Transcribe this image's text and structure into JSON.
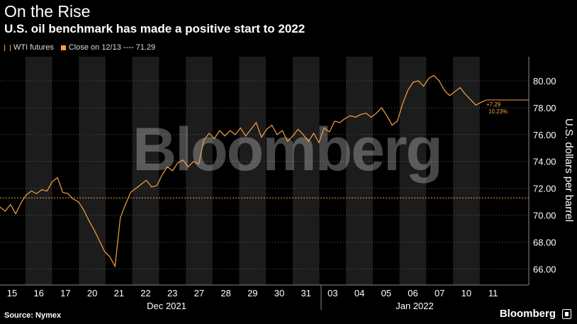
{
  "title": "On the Rise",
  "subtitle": "U.S. oil benchmark has made a positive start to 2022",
  "legend": {
    "series_label": "WTI futures",
    "close_label": "Close on 12/13 ---- 71.29"
  },
  "source": "Source: Nymex",
  "brand": "Bloomberg",
  "watermark": "Bloomberg",
  "annotation": {
    "change": "+7.29",
    "pct": "10.23%"
  },
  "colors": {
    "line": "#f5a142",
    "background": "#000000",
    "band": "#1c1c1c"
  },
  "chart_data": {
    "type": "line",
    "title": "On the Rise",
    "subtitle": "U.S. oil benchmark has made a positive start to 2022",
    "ylabel": "U.S. dollars per barrel",
    "xlabel": "",
    "ylim": [
      64.8,
      81.8
    ],
    "yticks": [
      "66.00",
      "68.00",
      "70.00",
      "72.00",
      "74.00",
      "76.00",
      "78.00",
      "80.00"
    ],
    "ytick_values": [
      66,
      68,
      70,
      72,
      74,
      76,
      78,
      80
    ],
    "day_labels": [
      "15",
      "16",
      "17",
      "20",
      "21",
      "22",
      "23",
      "27",
      "28",
      "29",
      "30",
      "31",
      "03",
      "04",
      "05",
      "06",
      "07",
      "10",
      "11"
    ],
    "month_labels": [
      "Dec 2021",
      "Jan 2022"
    ],
    "reference_line": {
      "label": "Close on 12/13",
      "value": 71.29
    },
    "last_value": 78.58,
    "series": [
      {
        "name": "WTI futures",
        "values": [
          70.6,
          70.3,
          70.8,
          70.1,
          70.9,
          71.5,
          71.8,
          71.6,
          71.9,
          71.8,
          72.5,
          72.8,
          71.7,
          71.6,
          71.2,
          71.0,
          70.4,
          69.6,
          68.9,
          68.1,
          67.3,
          66.9,
          66.2,
          69.8,
          70.8,
          71.7,
          72.0,
          72.3,
          72.6,
          72.1,
          72.2,
          73.0,
          73.6,
          73.3,
          73.9,
          74.1,
          73.6,
          74.0,
          73.8,
          75.6,
          76.1,
          75.7,
          76.3,
          75.9,
          76.3,
          76.0,
          76.5,
          75.9,
          76.4,
          76.9,
          75.8,
          76.4,
          76.7,
          76.0,
          76.3,
          75.5,
          75.9,
          76.4,
          76.0,
          75.5,
          76.1,
          75.4,
          76.5,
          76.2,
          77.0,
          76.9,
          77.2,
          77.4,
          77.3,
          77.5,
          77.6,
          77.3,
          77.6,
          78.0,
          77.4,
          76.7,
          77.0,
          78.3,
          79.3,
          79.9,
          80.0,
          79.6,
          80.2,
          80.4,
          80.0,
          79.3,
          78.9,
          79.2,
          79.5,
          79.0,
          78.6,
          78.2,
          78.4,
          78.58
        ]
      }
    ]
  }
}
